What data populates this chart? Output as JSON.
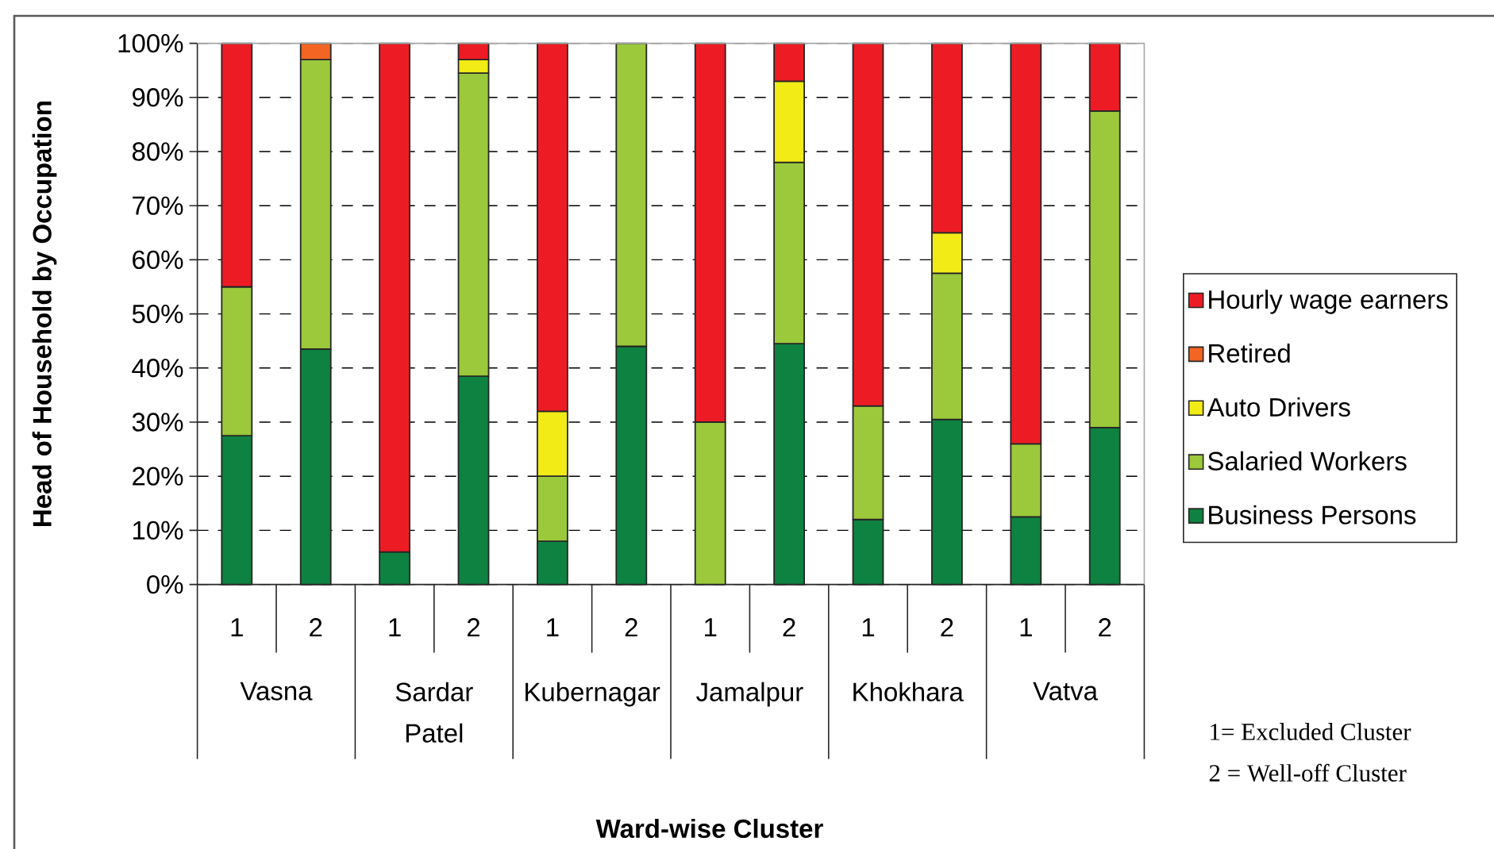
{
  "chart_data": {
    "type": "bar",
    "stacked": true,
    "ylabel": "Head of Household by Occupation",
    "categories": [
      "1",
      "2",
      "1",
      "2",
      "1",
      "2",
      "1",
      "2",
      "1",
      "2",
      "1",
      "2"
    ],
    "series": [
      {
        "name": "Business Persons",
        "color": "#0e8241",
        "values": [
          27.5,
          43.5,
          6,
          38.5,
          8,
          44,
          0,
          44.5,
          12,
          30.5,
          12.5,
          29
        ]
      },
      {
        "name": "Salaried Workers",
        "color": "#9bc93b",
        "values": [
          27.5,
          53.5,
          0,
          56,
          12,
          56,
          30,
          33.5,
          21,
          27,
          13.5,
          58.5
        ]
      },
      {
        "name": "Auto Drivers",
        "color": "#f2eb16",
        "values": [
          0,
          0,
          0,
          2.5,
          12,
          0,
          0,
          15,
          0,
          7.5,
          0,
          0
        ]
      },
      {
        "name": "Retired",
        "color": "#f26522",
        "values": [
          0,
          3,
          0,
          0,
          0,
          0,
          0,
          0,
          0,
          0,
          0,
          0
        ]
      },
      {
        "name": "Hourly wage earners",
        "color": "#ed1c24",
        "values": [
          45,
          0,
          94,
          3,
          68,
          0,
          70,
          7,
          67,
          35,
          74,
          12.5
        ]
      }
    ],
    "ylim": [
      0,
      100
    ],
    "yticks": [
      {
        "value": 0,
        "label": "0%"
      },
      {
        "value": 10,
        "label": "10%"
      },
      {
        "value": 20,
        "label": "20%"
      },
      {
        "value": 30,
        "label": "30%"
      },
      {
        "value": 40,
        "label": "40%"
      },
      {
        "value": 50,
        "label": "50%"
      },
      {
        "value": 60,
        "label": "60%"
      },
      {
        "value": 70,
        "label": "70%"
      },
      {
        "value": 80,
        "label": "80%"
      },
      {
        "value": 90,
        "label": "90%"
      },
      {
        "value": 100,
        "label": "100%"
      }
    ],
    "grid": "y",
    "legend": "right",
    "annotations": [
      "Vasna",
      "Sardar Patel",
      "Kubernagar",
      "Jamalpur",
      "Khokhara",
      "Vatva",
      "1= Excluded Cluster",
      "2 = Well-off Cluster",
      "Ward-wise Cluster"
    ]
  }
}
